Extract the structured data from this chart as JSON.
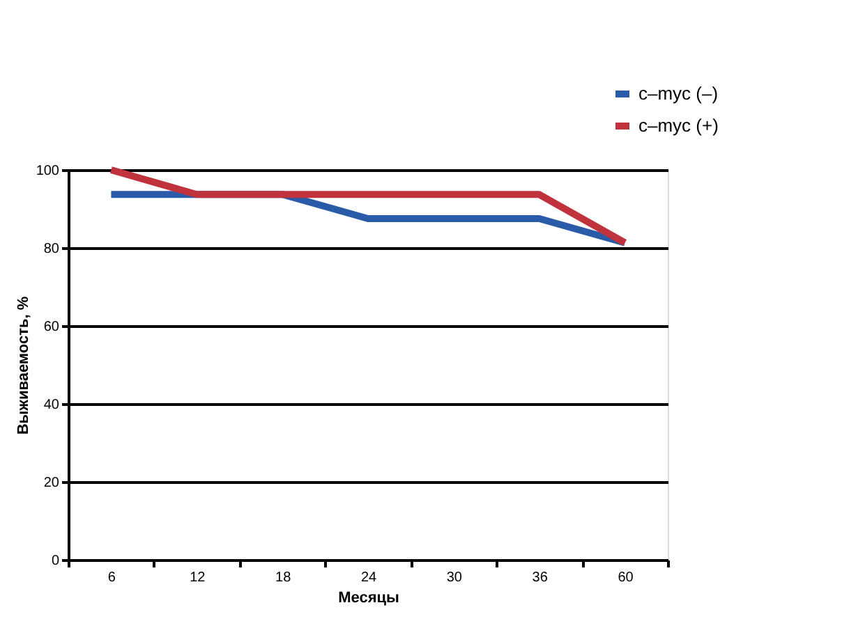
{
  "chart_data": {
    "type": "line",
    "xlabel": "Месяцы",
    "ylabel": "Выживаемость, %",
    "categories": [
      "6",
      "12",
      "18",
      "24",
      "30",
      "36",
      "60"
    ],
    "series": [
      {
        "name": "c–myc (–)",
        "color": "#2a5ba8",
        "values": [
          93.7,
          93.7,
          93.7,
          87.5,
          87.5,
          87.5,
          81.3
        ]
      },
      {
        "name": "c–myc (+)",
        "color": "#c0323c",
        "values": [
          100,
          93.7,
          93.7,
          93.7,
          93.7,
          93.7,
          81.3
        ]
      }
    ],
    "ylim": [
      0,
      100
    ],
    "yticks": [
      0,
      20,
      40,
      60,
      80,
      100
    ],
    "grid": "y",
    "legend": "top right",
    "marker": "none",
    "line_style": "solid"
  }
}
